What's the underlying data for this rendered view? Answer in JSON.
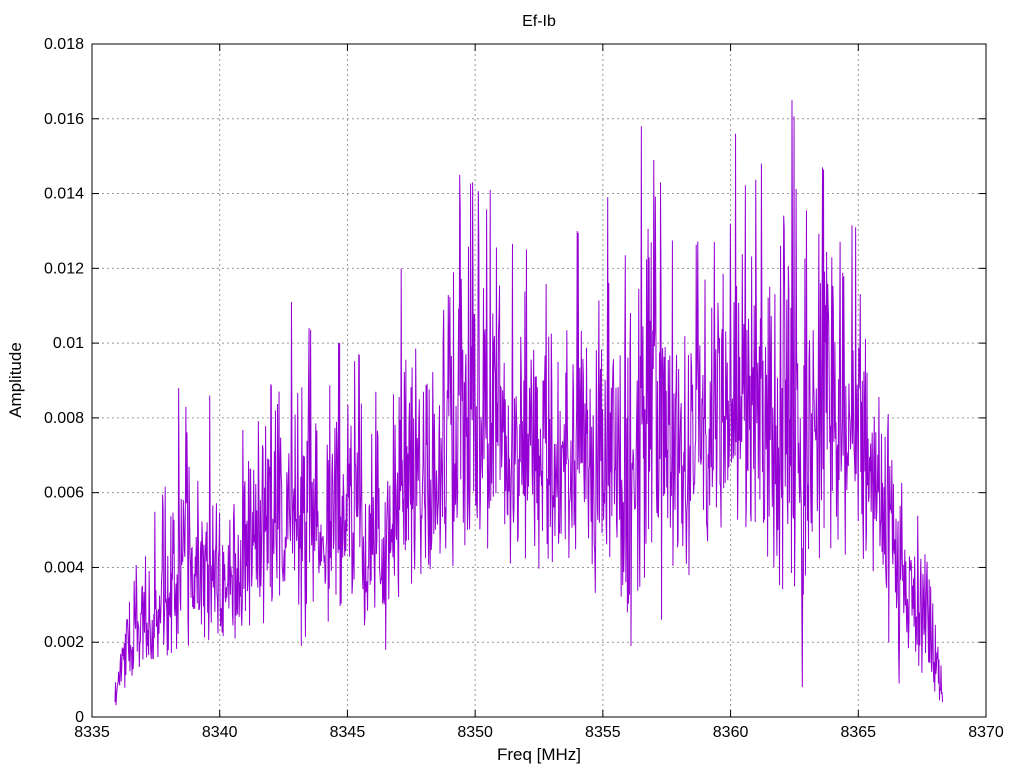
{
  "page": {
    "background": "#ffffff"
  },
  "chart_data": {
    "type": "line",
    "title": "Ef-Ib",
    "xlabel": "Freq [MHz]",
    "ylabel": "Amplitude",
    "xlim": [
      8335,
      8370
    ],
    "ylim": [
      0,
      0.018
    ],
    "xtick_values": [
      8335,
      8340,
      8345,
      8350,
      8355,
      8360,
      8365,
      8370
    ],
    "xtick_labels": [
      "8335",
      "8340",
      "8345",
      "8350",
      "8355",
      "8360",
      "8365",
      "8370"
    ],
    "ytick_values": [
      0,
      0.002,
      0.004,
      0.006,
      0.008,
      0.01,
      0.012,
      0.014,
      0.016,
      0.018
    ],
    "ytick_labels": [
      "0",
      "0.002",
      "0.004",
      "0.006",
      "0.008",
      "0.01",
      "0.012",
      "0.014",
      "0.016",
      "0.018"
    ],
    "grid": true,
    "grid_style": "dashed",
    "legend_position": "none",
    "line_color": "#9400D3",
    "axis_color": "#000000",
    "grid_color": "#999999",
    "series": [
      {
        "name": "Ef-Ib",
        "description": "Dense noisy amplitude spectrum, values read from plot as envelope control points",
        "x_start": 8335.9,
        "x_end": 8368.3,
        "n_points": 1600,
        "noise_model": "rayleigh",
        "seed": 7,
        "envelope_max": [
          [
            8335.9,
            0.001
          ],
          [
            8336.3,
            0.0035
          ],
          [
            8337,
            0.0048
          ],
          [
            8337.8,
            0.006
          ],
          [
            8338.4,
            0.0088
          ],
          [
            8339,
            0.0077
          ],
          [
            8339.6,
            0.0086
          ],
          [
            8340,
            0.0065
          ],
          [
            8341,
            0.0078
          ],
          [
            8341.8,
            0.0095
          ],
          [
            8342.8,
            0.0111
          ],
          [
            8343.5,
            0.0104
          ],
          [
            8344,
            0.01
          ],
          [
            8345,
            0.01
          ],
          [
            8345.7,
            0.0095
          ],
          [
            8346.3,
            0.0086
          ],
          [
            8347.1,
            0.012
          ],
          [
            8347.7,
            0.0108
          ],
          [
            8348.5,
            0.0106
          ],
          [
            8349,
            0.0145
          ],
          [
            8349.6,
            0.0144
          ],
          [
            8350.1,
            0.0141
          ],
          [
            8350.7,
            0.0132
          ],
          [
            8351.3,
            0.0127
          ],
          [
            8352,
            0.0125
          ],
          [
            8352.7,
            0.0115
          ],
          [
            8353.4,
            0.0122
          ],
          [
            8354,
            0.013
          ],
          [
            8354.6,
            0.0121
          ],
          [
            8355.2,
            0.0139
          ],
          [
            8355.8,
            0.0128
          ],
          [
            8356.5,
            0.0158
          ],
          [
            8357,
            0.0149
          ],
          [
            8357.6,
            0.014
          ],
          [
            8358.2,
            0.0136
          ],
          [
            8359,
            0.0126
          ],
          [
            8359.6,
            0.0132
          ],
          [
            8360.2,
            0.0156
          ],
          [
            8360.8,
            0.014
          ],
          [
            8361.2,
            0.0148
          ],
          [
            8361.8,
            0.0143
          ],
          [
            8362.4,
            0.0165
          ],
          [
            8363,
            0.0134
          ],
          [
            8363.6,
            0.0147
          ],
          [
            8364.2,
            0.0138
          ],
          [
            8364.8,
            0.0131
          ],
          [
            8365.3,
            0.0127
          ],
          [
            8365.9,
            0.0112
          ],
          [
            8366.4,
            0.009
          ],
          [
            8366.9,
            0.007
          ],
          [
            8367.3,
            0.0058
          ],
          [
            8367.8,
            0.0042
          ],
          [
            8368.3,
            0.0012
          ]
        ],
        "envelope_min": [
          [
            8335.9,
            0.0002
          ],
          [
            8336.5,
            0.0008
          ],
          [
            8337,
            0.001
          ],
          [
            8338,
            0.0015
          ],
          [
            8339,
            0.0015
          ],
          [
            8340,
            0.0018
          ],
          [
            8341,
            0.002
          ],
          [
            8342,
            0.0022
          ],
          [
            8343,
            0.002
          ],
          [
            8344,
            0.0022
          ],
          [
            8345,
            0.0025
          ],
          [
            8346,
            0.0018
          ],
          [
            8347,
            0.0028
          ],
          [
            8348,
            0.003
          ],
          [
            8349,
            0.0038
          ],
          [
            8350,
            0.004
          ],
          [
            8351,
            0.004
          ],
          [
            8352,
            0.0035
          ],
          [
            8353,
            0.0038
          ],
          [
            8354,
            0.0035
          ],
          [
            8355,
            0.003
          ],
          [
            8356,
            0.002
          ],
          [
            8357,
            0.0035
          ],
          [
            8358,
            0.003
          ],
          [
            8359,
            0.0035
          ],
          [
            8360,
            0.0038
          ],
          [
            8361,
            0.004
          ],
          [
            8362,
            0.003
          ],
          [
            8362.8,
            0.0008
          ],
          [
            8363.2,
            0.0038
          ],
          [
            8364,
            0.004
          ],
          [
            8365,
            0.0038
          ],
          [
            8365.8,
            0.0028
          ],
          [
            8366.5,
            0.0012
          ],
          [
            8367,
            0.0015
          ],
          [
            8367.6,
            0.001
          ],
          [
            8368.3,
            0.0002
          ]
        ],
        "peaks": [
          [
            8338.4,
            0.0088
          ],
          [
            8339.6,
            0.0086
          ],
          [
            8342.8,
            0.0111
          ],
          [
            8343.5,
            0.0104
          ],
          [
            8347.1,
            0.012
          ],
          [
            8349.4,
            0.0145
          ],
          [
            8349.9,
            0.0143
          ],
          [
            8350.6,
            0.0141
          ],
          [
            8352.0,
            0.0125
          ],
          [
            8354.0,
            0.013
          ],
          [
            8355.2,
            0.0139
          ],
          [
            8356.5,
            0.0158
          ],
          [
            8357.0,
            0.0149
          ],
          [
            8360.2,
            0.0156
          ],
          [
            8361.2,
            0.0148
          ],
          [
            8362.4,
            0.0165
          ],
          [
            8363.6,
            0.0147
          ],
          [
            8364.9,
            0.0131
          ]
        ],
        "dips": [
          [
            8335.9,
            0.0004
          ],
          [
            8340.6,
            0.0021
          ],
          [
            8343.2,
            0.0019
          ],
          [
            8346.5,
            0.0018
          ],
          [
            8356.1,
            0.0019
          ],
          [
            8357.3,
            0.0026
          ],
          [
            8362.8,
            0.0008
          ],
          [
            8366.6,
            0.0009
          ],
          [
            8368.3,
            0.0004
          ]
        ]
      }
    ]
  }
}
